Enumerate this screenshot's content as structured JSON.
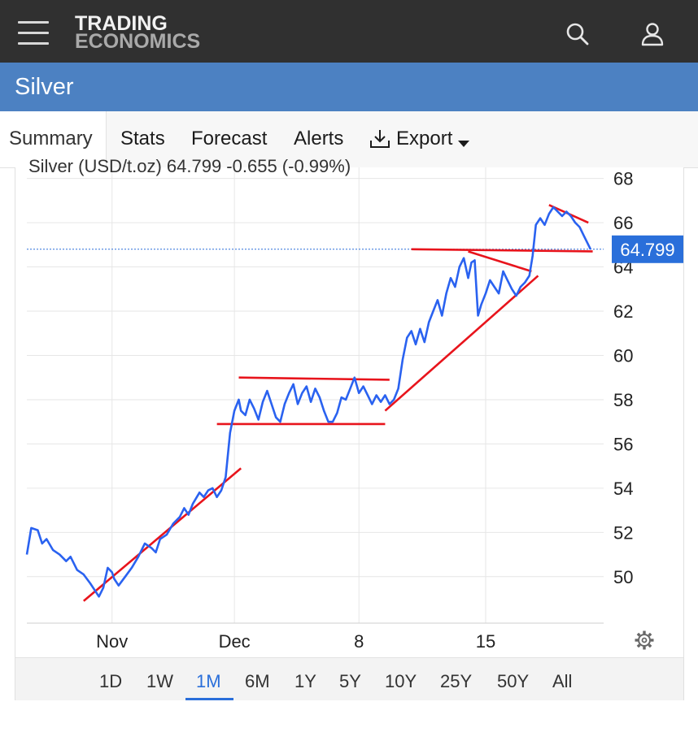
{
  "header": {
    "logo_line1": "TRADING",
    "logo_line2": "ECONOMICS"
  },
  "title": "Silver",
  "tabs": [
    "Summary",
    "Stats",
    "Forecast",
    "Alerts",
    "Export"
  ],
  "range_buttons": [
    "1D",
    "1W",
    "1M",
    "6M",
    "1Y",
    "5Y",
    "10Y",
    "25Y",
    "50Y",
    "All"
  ],
  "active_range": "1M",
  "chart_data": {
    "type": "line",
    "legend_text": "Silver (USD/t.oz) 64.799 -0.655 (-0.99%)",
    "last_value_label": "64.799",
    "last_value": 64.799,
    "ylim": [
      47.9,
      68.5
    ],
    "y_ticks": [
      50,
      52,
      54,
      56,
      58,
      60,
      62,
      64,
      66,
      68
    ],
    "x_ticks": [
      {
        "t": 3.9,
        "label": "Nov"
      },
      {
        "t": 9.5,
        "label": "Dec"
      },
      {
        "t": 15.2,
        "label": "8"
      },
      {
        "t": 21.0,
        "label": "15"
      }
    ],
    "xlim": [
      0,
      26.4
    ],
    "series": [
      {
        "values": [
          [
            0.0,
            51.0
          ],
          [
            0.2,
            52.2
          ],
          [
            0.5,
            52.1
          ],
          [
            0.7,
            51.5
          ],
          [
            0.9,
            51.7
          ],
          [
            1.2,
            51.2
          ],
          [
            1.5,
            51.0
          ],
          [
            1.8,
            50.7
          ],
          [
            2.0,
            50.9
          ],
          [
            2.3,
            50.3
          ],
          [
            2.6,
            50.1
          ],
          [
            2.9,
            49.7
          ],
          [
            3.1,
            49.4
          ],
          [
            3.3,
            49.1
          ],
          [
            3.5,
            49.5
          ],
          [
            3.7,
            50.4
          ],
          [
            3.9,
            50.2
          ],
          [
            4.0,
            49.9
          ],
          [
            4.2,
            49.6
          ],
          [
            4.5,
            50.0
          ],
          [
            4.8,
            50.4
          ],
          [
            5.1,
            50.9
          ],
          [
            5.4,
            51.5
          ],
          [
            5.7,
            51.3
          ],
          [
            5.9,
            51.1
          ],
          [
            6.1,
            51.7
          ],
          [
            6.4,
            51.9
          ],
          [
            6.7,
            52.4
          ],
          [
            7.0,
            52.7
          ],
          [
            7.2,
            53.1
          ],
          [
            7.4,
            52.8
          ],
          [
            7.6,
            53.3
          ],
          [
            7.9,
            53.8
          ],
          [
            8.1,
            53.6
          ],
          [
            8.3,
            53.9
          ],
          [
            8.5,
            54.0
          ],
          [
            8.7,
            53.6
          ],
          [
            8.9,
            53.9
          ],
          [
            9.1,
            54.5
          ],
          [
            9.3,
            56.5
          ],
          [
            9.5,
            57.5
          ],
          [
            9.7,
            58.0
          ],
          [
            9.8,
            57.5
          ],
          [
            10.0,
            57.3
          ],
          [
            10.2,
            58.0
          ],
          [
            10.4,
            57.6
          ],
          [
            10.6,
            57.1
          ],
          [
            10.8,
            57.9
          ],
          [
            11.0,
            58.4
          ],
          [
            11.2,
            57.8
          ],
          [
            11.4,
            57.2
          ],
          [
            11.6,
            57.0
          ],
          [
            11.8,
            57.8
          ],
          [
            12.0,
            58.3
          ],
          [
            12.2,
            58.7
          ],
          [
            12.4,
            57.8
          ],
          [
            12.6,
            58.3
          ],
          [
            12.8,
            58.6
          ],
          [
            13.0,
            57.9
          ],
          [
            13.2,
            58.5
          ],
          [
            13.4,
            58.1
          ],
          [
            13.6,
            57.5
          ],
          [
            13.8,
            57.0
          ],
          [
            14.0,
            57.0
          ],
          [
            14.2,
            57.4
          ],
          [
            14.4,
            58.1
          ],
          [
            14.6,
            58.0
          ],
          [
            14.8,
            58.5
          ],
          [
            15.0,
            59.0
          ],
          [
            15.2,
            58.3
          ],
          [
            15.4,
            58.6
          ],
          [
            15.6,
            58.2
          ],
          [
            15.8,
            57.8
          ],
          [
            16.0,
            58.2
          ],
          [
            16.2,
            57.9
          ],
          [
            16.4,
            58.2
          ],
          [
            16.6,
            57.8
          ],
          [
            16.8,
            58.0
          ],
          [
            17.0,
            58.5
          ],
          [
            17.2,
            59.8
          ],
          [
            17.4,
            60.8
          ],
          [
            17.6,
            61.1
          ],
          [
            17.8,
            60.5
          ],
          [
            18.0,
            61.2
          ],
          [
            18.2,
            60.6
          ],
          [
            18.4,
            61.5
          ],
          [
            18.6,
            62.0
          ],
          [
            18.8,
            62.5
          ],
          [
            19.0,
            61.8
          ],
          [
            19.2,
            62.8
          ],
          [
            19.4,
            63.5
          ],
          [
            19.6,
            63.1
          ],
          [
            19.8,
            64.0
          ],
          [
            20.0,
            64.4
          ],
          [
            20.2,
            63.5
          ],
          [
            20.35,
            64.2
          ],
          [
            20.5,
            64.3
          ],
          [
            20.65,
            61.8
          ],
          [
            20.8,
            62.3
          ],
          [
            21.0,
            62.8
          ],
          [
            21.2,
            63.4
          ],
          [
            21.4,
            63.1
          ],
          [
            21.6,
            62.8
          ],
          [
            21.8,
            63.8
          ],
          [
            22.0,
            63.4
          ],
          [
            22.2,
            63.0
          ],
          [
            22.4,
            62.7
          ],
          [
            22.6,
            63.1
          ],
          [
            22.8,
            63.3
          ],
          [
            23.0,
            63.6
          ],
          [
            23.15,
            64.5
          ],
          [
            23.3,
            65.9
          ],
          [
            23.5,
            66.2
          ],
          [
            23.7,
            65.9
          ],
          [
            23.9,
            66.4
          ],
          [
            24.1,
            66.7
          ],
          [
            24.3,
            66.5
          ],
          [
            24.5,
            66.3
          ],
          [
            24.7,
            66.5
          ],
          [
            24.9,
            66.3
          ],
          [
            25.1,
            66.0
          ],
          [
            25.3,
            65.8
          ],
          [
            25.5,
            65.4
          ],
          [
            25.7,
            65.0
          ],
          [
            25.8,
            64.799
          ]
        ]
      }
    ],
    "trendlines": [
      [
        [
          2.6,
          48.9
        ],
        [
          9.8,
          54.9
        ]
      ],
      [
        [
          8.7,
          56.9
        ],
        [
          16.4,
          56.9
        ]
      ],
      [
        [
          9.7,
          59.0
        ],
        [
          16.6,
          58.9
        ]
      ],
      [
        [
          16.4,
          57.5
        ],
        [
          23.4,
          63.6
        ]
      ],
      [
        [
          17.6,
          64.8
        ],
        [
          25.9,
          64.7
        ]
      ],
      [
        [
          20.2,
          64.7
        ],
        [
          23.1,
          63.8
        ]
      ],
      [
        [
          23.9,
          66.8
        ],
        [
          25.7,
          66.0
        ]
      ]
    ]
  }
}
